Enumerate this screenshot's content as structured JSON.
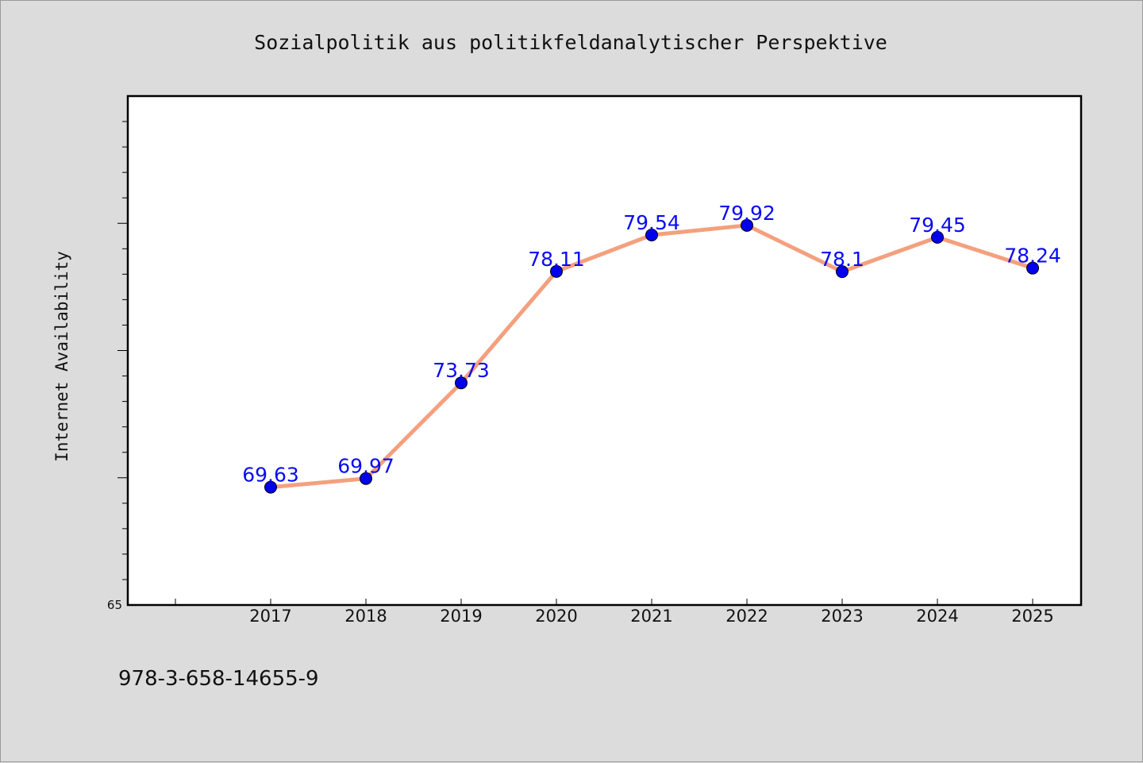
{
  "chart_data": {
    "type": "line",
    "title": "Sozialpolitik aus politikfeldanalytischer Perspektive",
    "xlabel": "",
    "ylabel": "Internet Availability",
    "categories": [
      "2017",
      "2018",
      "2019",
      "2020",
      "2021",
      "2022",
      "2023",
      "2024",
      "2025"
    ],
    "series": [
      {
        "values": [
          69.63,
          69.97,
          73.73,
          78.11,
          79.54,
          79.92,
          78.1,
          79.45,
          78.24
        ],
        "data_labels": [
          "69.63",
          "69.97",
          "73.73",
          "78.11",
          "79.54",
          "79.92",
          "78.1",
          "79.45",
          "78.24"
        ],
        "line_color": "#f4a07e",
        "marker_color": "#0000ee"
      }
    ],
    "ylim": [
      65,
      85
    ],
    "y_tick_labels": [
      "65"
    ],
    "grid": false,
    "legend": "none"
  },
  "footer": {
    "isbn": "978-3-658-14655-9"
  },
  "colors": {
    "background": "#dcdcdc",
    "plot_background": "#ffffff",
    "data_label": "#0a0af5"
  }
}
